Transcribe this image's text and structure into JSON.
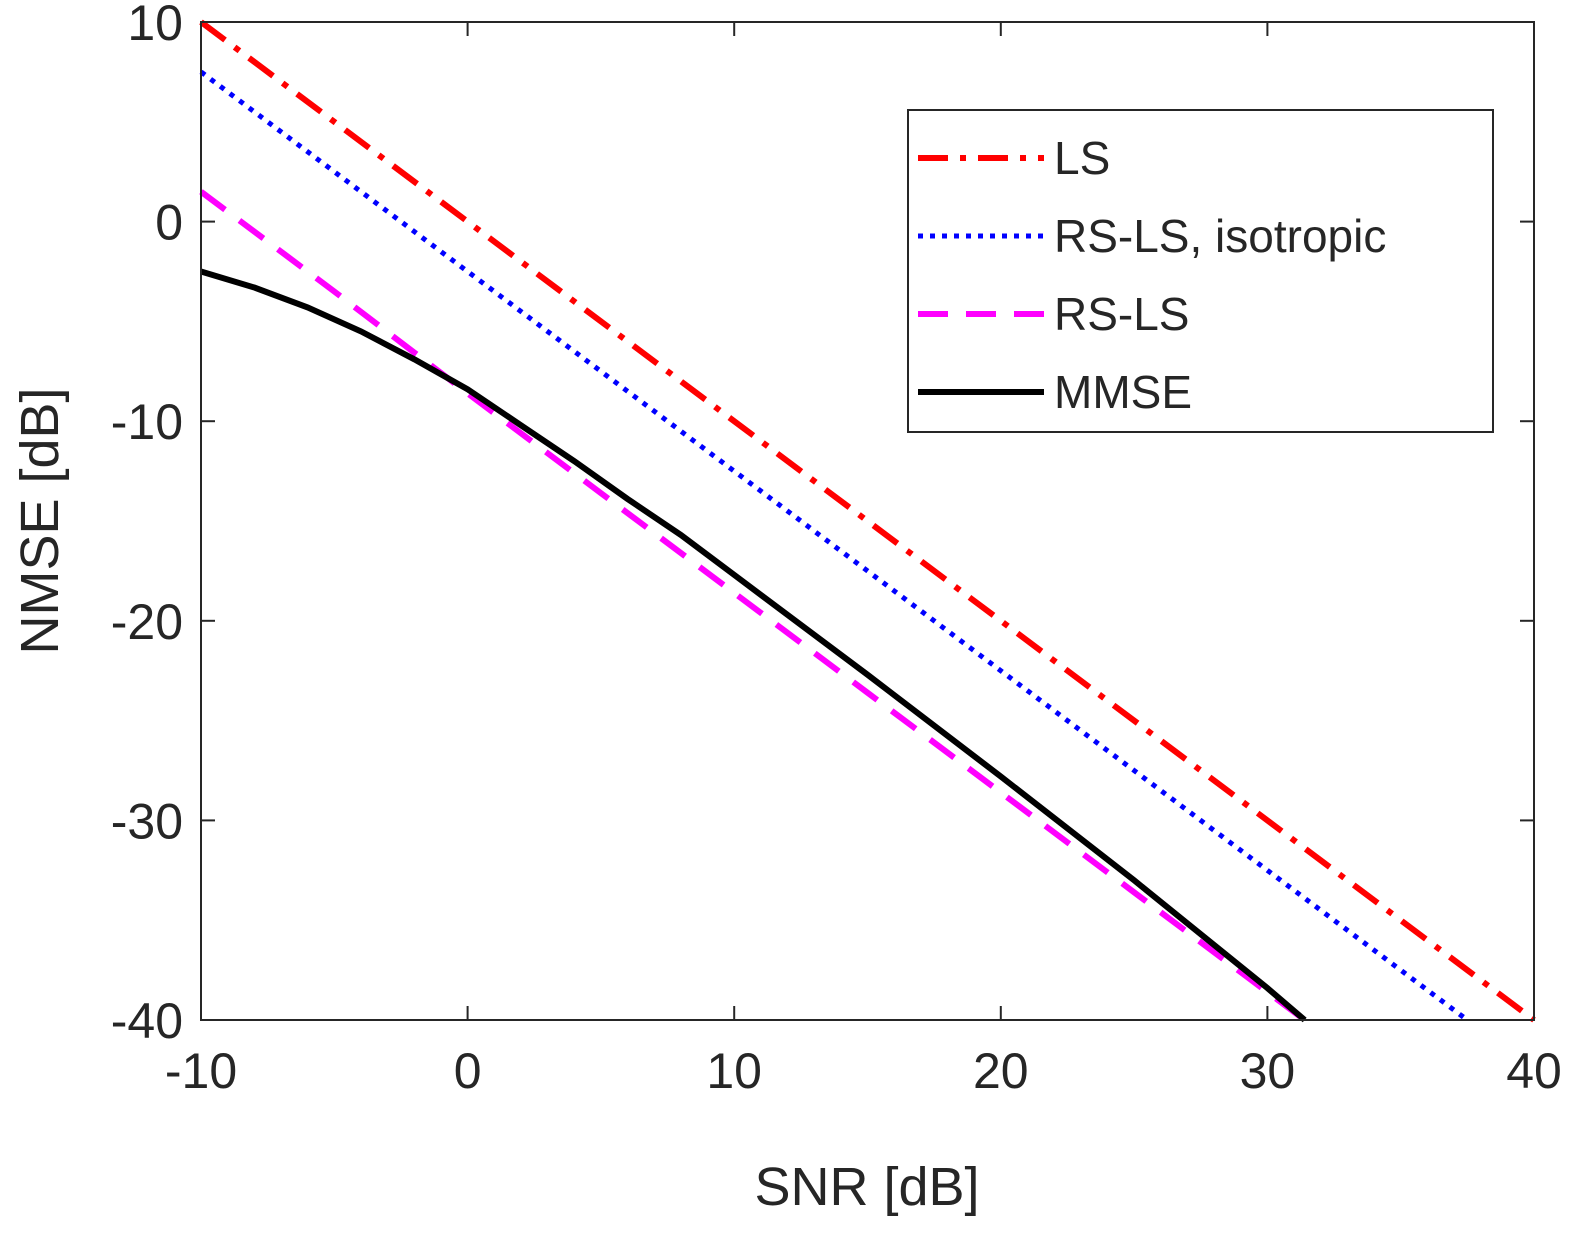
{
  "chart_data": {
    "type": "line",
    "title": "",
    "xlabel": "SNR [dB]",
    "ylabel": "NMSE [dB]",
    "xlim": [
      -10,
      40
    ],
    "ylim": [
      -40,
      10
    ],
    "xticks": [
      -10,
      0,
      10,
      20,
      30,
      40
    ],
    "yticks": [
      -40,
      -30,
      -20,
      -10,
      0,
      10
    ],
    "grid": false,
    "legend_position": "top-right",
    "series": [
      {
        "name": "LS",
        "color": "#ff0000",
        "style": "dash-dot",
        "x": [
          -10,
          40
        ],
        "y": [
          10,
          -40
        ]
      },
      {
        "name": "RS-LS, isotropic",
        "color": "#0000ff",
        "style": "dotted",
        "x": [
          -10,
          37.5
        ],
        "y": [
          7.5,
          -40
        ]
      },
      {
        "name": "RS-LS",
        "color": "#ff00ff",
        "style": "dashed",
        "x": [
          -10,
          -5,
          0,
          5,
          10,
          15,
          20,
          25,
          30,
          31.4
        ],
        "y": [
          1.5,
          -3.5,
          -8.6,
          -13.6,
          -18.6,
          -23.6,
          -28.6,
          -33.6,
          -38.6,
          -40
        ]
      },
      {
        "name": "MMSE",
        "color": "#000000",
        "style": "solid",
        "x": [
          -10,
          -8,
          -6,
          -4,
          -2,
          0,
          2,
          4,
          6,
          8,
          10,
          15,
          20,
          25,
          30,
          31.4
        ],
        "y": [
          -2.5,
          -3.3,
          -4.3,
          -5.5,
          -6.9,
          -8.4,
          -10.2,
          -12.0,
          -13.9,
          -15.7,
          -17.7,
          -22.7,
          -27.8,
          -33.0,
          -38.4,
          -40
        ]
      }
    ]
  }
}
